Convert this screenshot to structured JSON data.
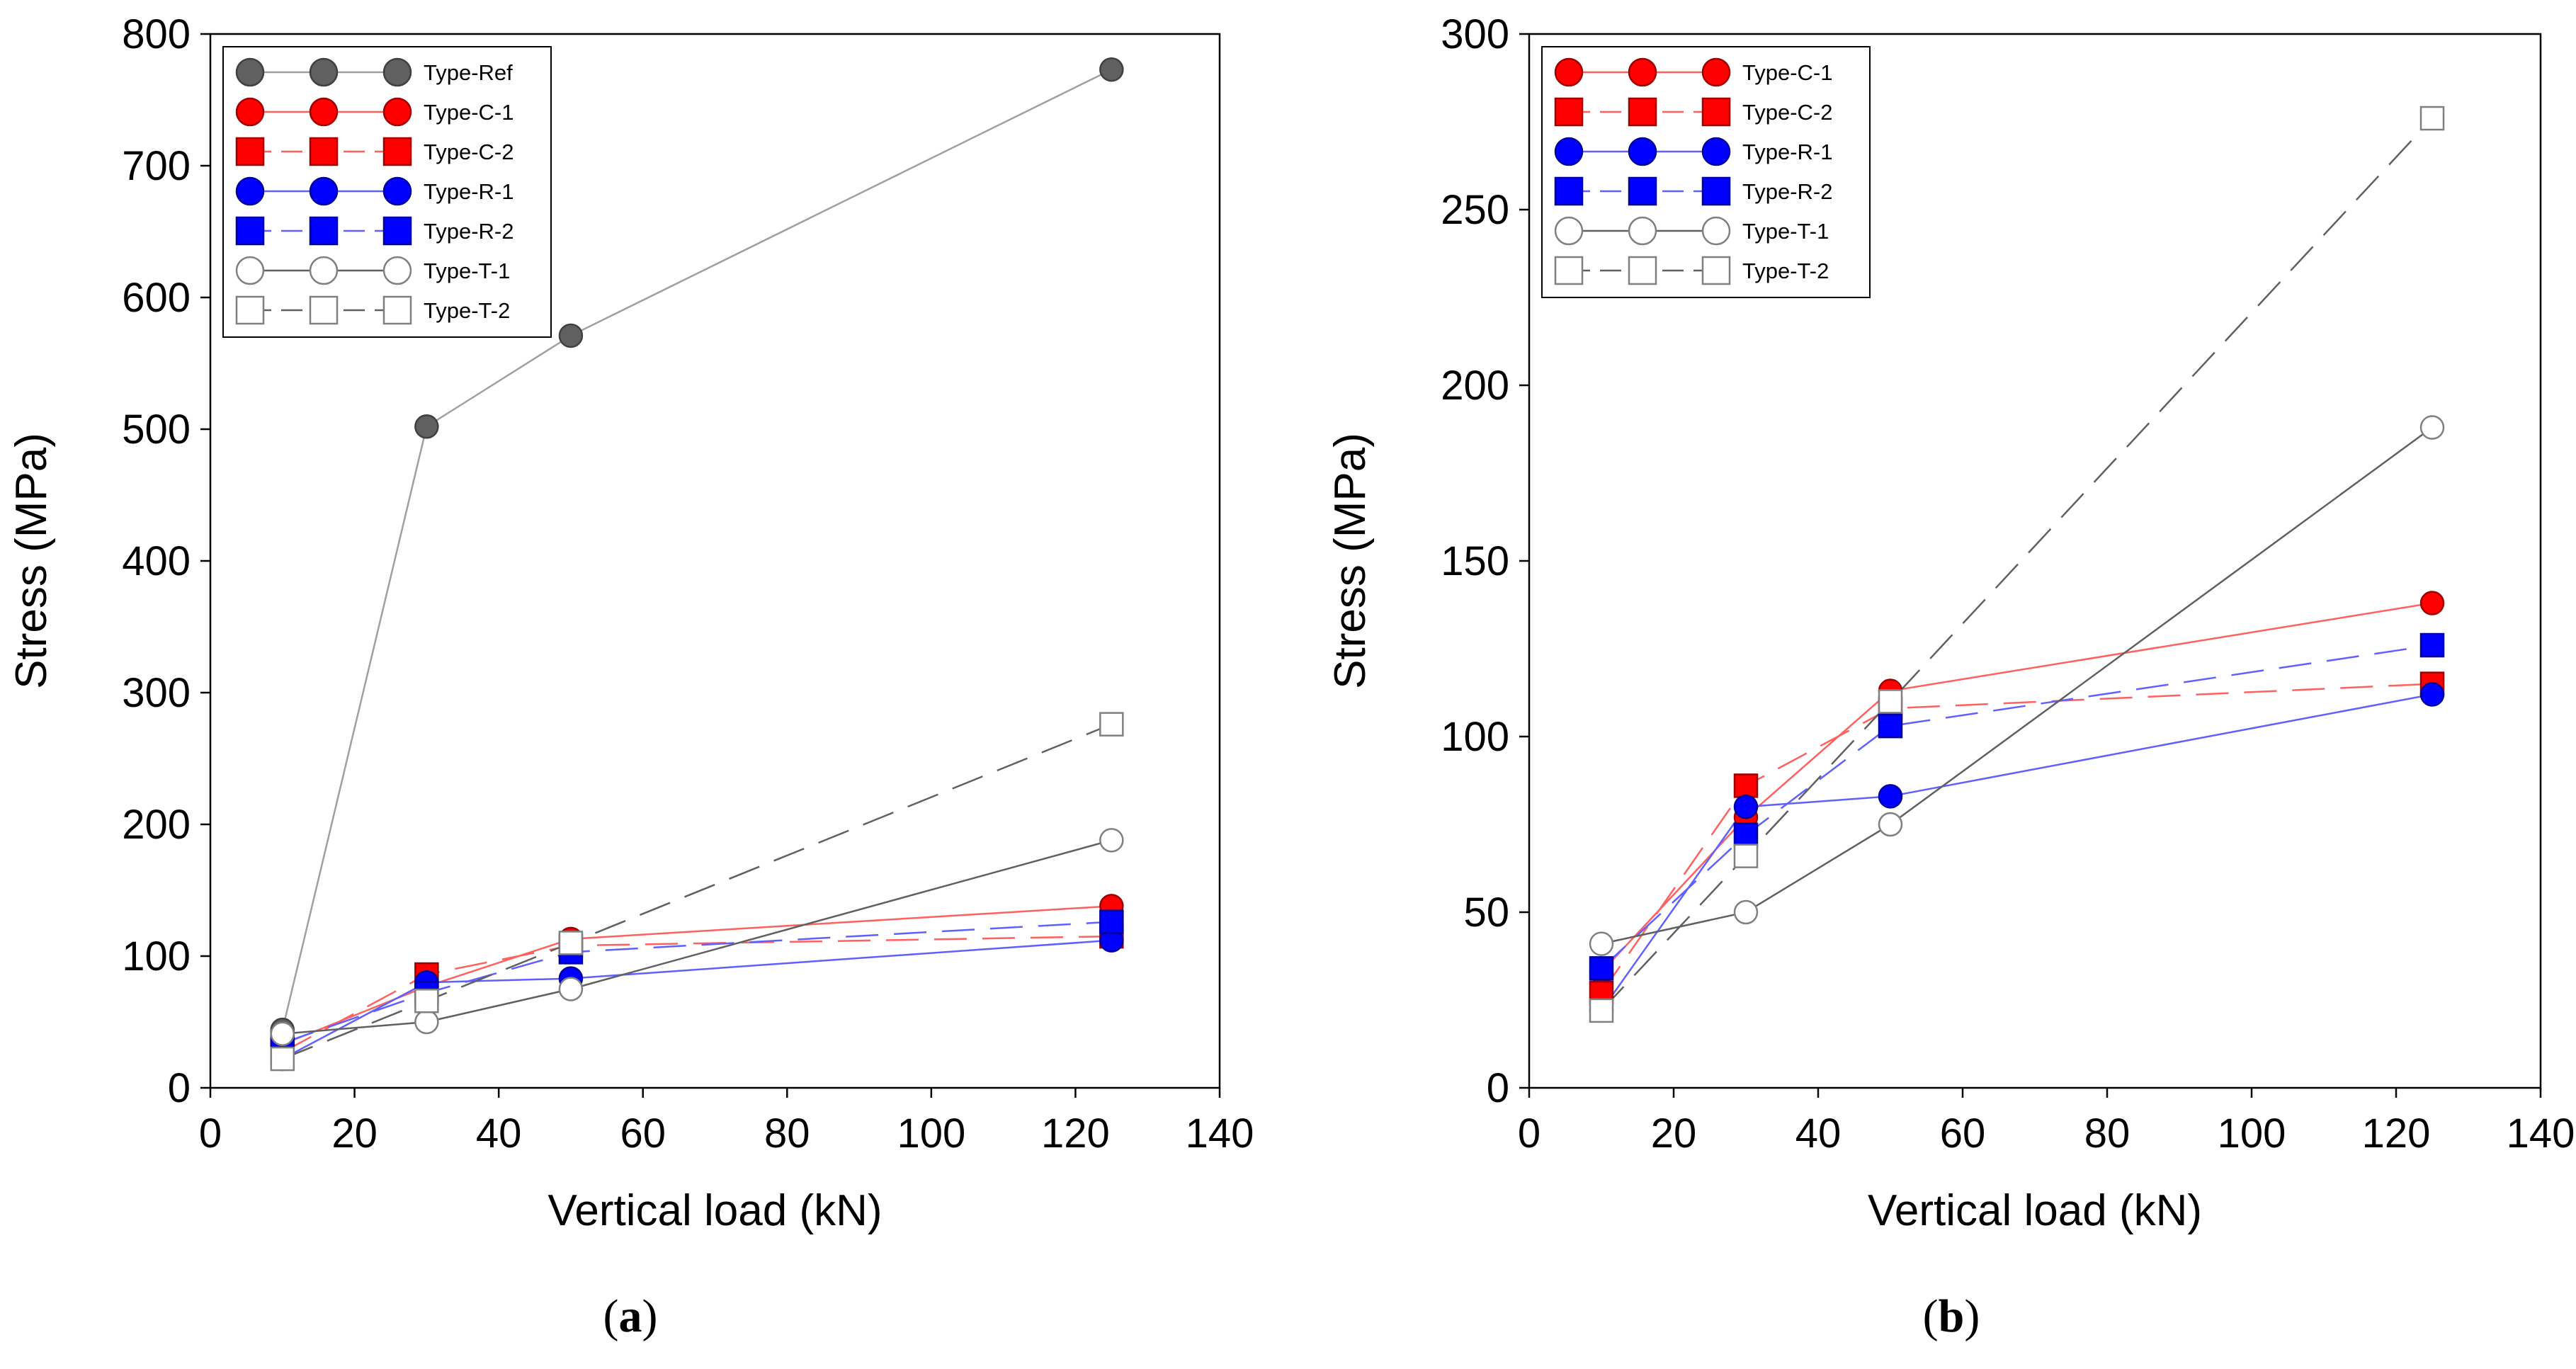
{
  "chart_data": [
    {
      "type": "line",
      "panel_label": "a",
      "xlabel": "Vertical load (kN)",
      "ylabel": "Stress (MPa)",
      "xlim": [
        0,
        140
      ],
      "ylim": [
        0,
        800
      ],
      "xticks": [
        0,
        20,
        40,
        60,
        80,
        100,
        120,
        140
      ],
      "yticks": [
        0,
        100,
        200,
        300,
        400,
        500,
        600,
        700,
        800
      ],
      "legend_position": "top-left",
      "x": [
        10,
        30,
        50,
        125
      ],
      "series": [
        {
          "name": "Type-Ref",
          "marker": "circle",
          "fill": "#606060",
          "stroke": "#404040",
          "line_color": "#a0a0a0",
          "dash": "solid",
          "values": [
            44,
            502,
            571,
            773
          ]
        },
        {
          "name": "Type-C-1",
          "marker": "circle",
          "fill": "#ff0000",
          "stroke": "#a00000",
          "line_color": "#ff6060",
          "dash": "solid",
          "values": [
            33,
            77,
            113,
            138
          ]
        },
        {
          "name": "Type-C-2",
          "marker": "square",
          "fill": "#ff0000",
          "stroke": "#a00000",
          "line_color": "#ff6060",
          "dash": "dashed",
          "values": [
            27,
            86,
            108,
            115
          ]
        },
        {
          "name": "Type-R-1",
          "marker": "circle",
          "fill": "#0000ff",
          "stroke": "#0000a0",
          "line_color": "#6060ff",
          "dash": "solid",
          "values": [
            22,
            80,
            83,
            112
          ]
        },
        {
          "name": "Type-R-2",
          "marker": "square",
          "fill": "#0000ff",
          "stroke": "#0000a0",
          "line_color": "#6060ff",
          "dash": "dashed",
          "values": [
            34,
            72,
            103,
            126
          ]
        },
        {
          "name": "Type-T-1",
          "marker": "circle",
          "fill": "#ffffff",
          "stroke": "#808080",
          "line_color": "#606060",
          "dash": "solid",
          "values": [
            41,
            50,
            75,
            188
          ]
        },
        {
          "name": "Type-T-2",
          "marker": "square",
          "fill": "#ffffff",
          "stroke": "#808080",
          "line_color": "#606060",
          "dash": "dashed",
          "values": [
            22,
            66,
            110,
            276
          ]
        }
      ]
    },
    {
      "type": "line",
      "panel_label": "b",
      "xlabel": "Vertical load (kN)",
      "ylabel": "Stress (MPa)",
      "xlim": [
        0,
        140
      ],
      "ylim": [
        0,
        300
      ],
      "xticks": [
        0,
        20,
        40,
        60,
        80,
        100,
        120,
        140
      ],
      "yticks": [
        0,
        50,
        100,
        150,
        200,
        250,
        300
      ],
      "legend_position": "top-left",
      "x": [
        10,
        30,
        50,
        125
      ],
      "series": [
        {
          "name": "Type-C-1",
          "marker": "circle",
          "fill": "#ff0000",
          "stroke": "#a00000",
          "line_color": "#ff6060",
          "dash": "solid",
          "values": [
            33,
            77,
            113,
            138
          ]
        },
        {
          "name": "Type-C-2",
          "marker": "square",
          "fill": "#ff0000",
          "stroke": "#a00000",
          "line_color": "#ff6060",
          "dash": "dashed",
          "values": [
            27,
            86,
            108,
            115
          ]
        },
        {
          "name": "Type-R-1",
          "marker": "circle",
          "fill": "#0000ff",
          "stroke": "#0000a0",
          "line_color": "#6060ff",
          "dash": "solid",
          "values": [
            22,
            80,
            83,
            112
          ]
        },
        {
          "name": "Type-R-2",
          "marker": "square",
          "fill": "#0000ff",
          "stroke": "#0000a0",
          "line_color": "#6060ff",
          "dash": "dashed",
          "values": [
            34,
            72,
            103,
            126
          ]
        },
        {
          "name": "Type-T-1",
          "marker": "circle",
          "fill": "#ffffff",
          "stroke": "#808080",
          "line_color": "#606060",
          "dash": "solid",
          "values": [
            41,
            50,
            75,
            188
          ]
        },
        {
          "name": "Type-T-2",
          "marker": "square",
          "fill": "#ffffff",
          "stroke": "#808080",
          "line_color": "#606060",
          "dash": "dashed",
          "values": [
            22,
            66,
            110,
            276
          ]
        }
      ]
    }
  ]
}
